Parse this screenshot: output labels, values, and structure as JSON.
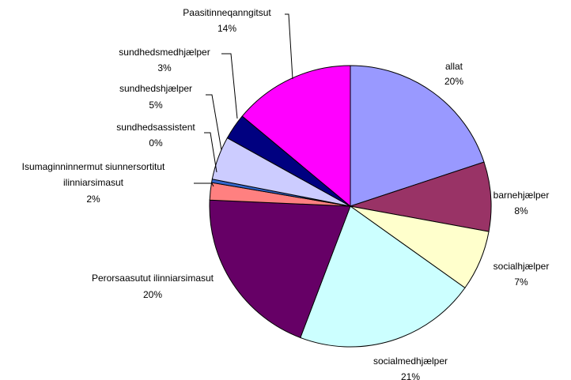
{
  "chart_data": {
    "type": "pie",
    "categories": [
      "allat",
      "barnehjælper",
      "socialhjælper",
      "socialmedhjælper",
      "Perorsaasutut ilinniarsimasut",
      "Isumaginninnermut siunnersortitut ilinniarsimasut",
      "sundhedsassistent",
      "sundhedshjælper",
      "sundhedsmedhjælper",
      "Paasitinneqanngitsut"
    ],
    "values": [
      20,
      8,
      7,
      21,
      20,
      2,
      0.4,
      5,
      3,
      14
    ],
    "value_labels": [
      "20%",
      "8%",
      "7%",
      "21%",
      "20%",
      "2%",
      "0%",
      "5%",
      "3%",
      "14%"
    ],
    "colors": [
      "#9999ff",
      "#993366",
      "#ffffcc",
      "#ccffff",
      "#660066",
      "#ff8080",
      "#3366cc",
      "#ccccff",
      "#000080",
      "#ff00ff"
    ]
  }
}
